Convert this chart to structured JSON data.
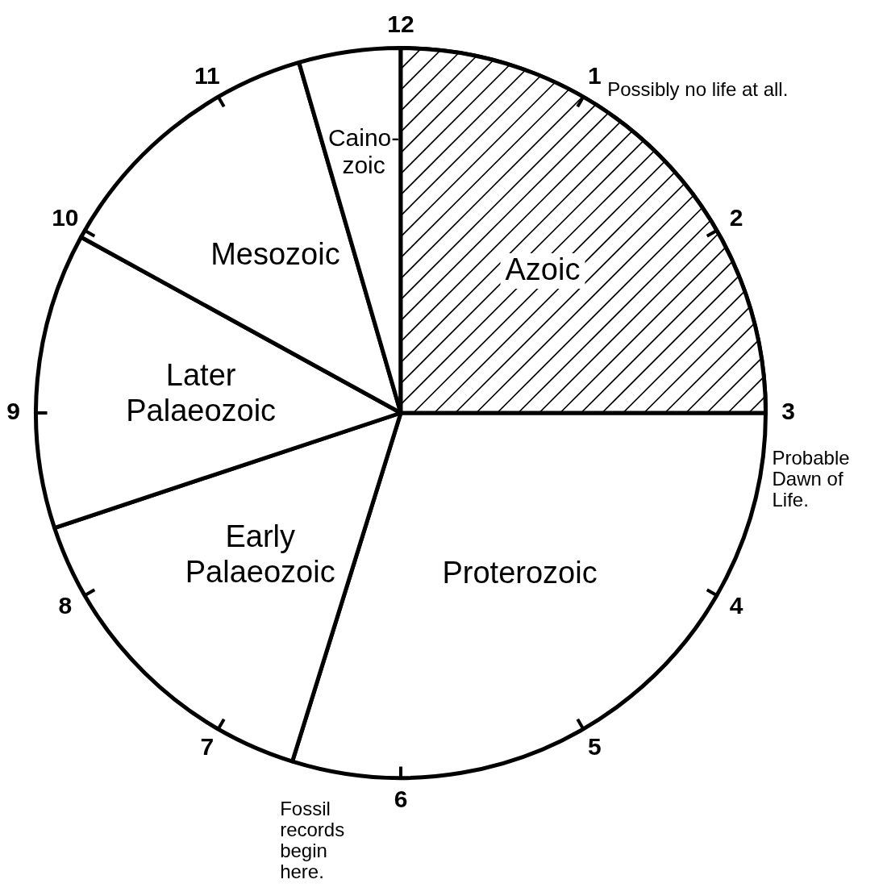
{
  "chart_data": {
    "type": "pie",
    "categories": [
      "Azoic",
      "Proterozoic",
      "Early Palaeozoic",
      "Later Palaeozoic",
      "Mesozoic",
      "Caino-zoic"
    ],
    "values": [
      25,
      29.8,
      15.1,
      13.1,
      12.5,
      4.5
    ],
    "colors": [
      "#d9d9d9",
      "#ffffff",
      "#ffffff",
      "#ffffff",
      "#ffffff",
      "#ffffff"
    ],
    "legend": false,
    "annotations": [
      "12",
      "1",
      "2",
      "3",
      "4",
      "5",
      "6",
      "7",
      "8",
      "9",
      "10",
      "11",
      "Possibly no life at all.",
      "Probable Dawn of Life.",
      "Fossil records begin here."
    ]
  }
}
